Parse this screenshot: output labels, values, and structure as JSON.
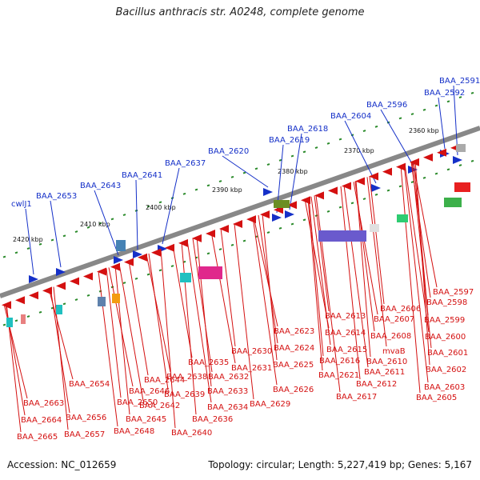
{
  "title": "Bacillus anthracis str. A0248, complete genome",
  "footer": {
    "accession": "Accession: NC_012659",
    "topology": "Topology: circular; Length: 5,227,419 bp; Genes: 5,167"
  },
  "ruler": [
    "2360 kbp",
    "2370 kbp",
    "2380 kbp",
    "2390 kbp",
    "2400 kbp",
    "2410 kbp",
    "2420 kbp"
  ],
  "forward_genes": [
    "BAA_2591",
    "BAA_2592",
    "BAA_2596",
    "BAA_2604",
    "BAA_2618",
    "BAA_2619",
    "BAA_2620",
    "BAA_2637",
    "BAA_2641",
    "BAA_2643",
    "BAA_2653",
    "cwlJ1"
  ],
  "reverse_genes": [
    "BAA_2597",
    "BAA_2598",
    "BAA_2599",
    "BAA_2600",
    "BAA_2601",
    "BAA_2602",
    "BAA_2603",
    "BAA_2605",
    "BAA_2606",
    "BAA_2607",
    "BAA_2608",
    "BAA_2610",
    "BAA_2611",
    "BAA_2612",
    "BAA_2613",
    "BAA_2614",
    "BAA_2615",
    "BAA_2616",
    "BAA_2617",
    "mvaB",
    "BAA_2621",
    "BAA_2623",
    "BAA_2624",
    "BAA_2625",
    "BAA_2626",
    "BAA_2629",
    "BAA_2630",
    "BAA_2631",
    "BAA_2632",
    "BAA_2633",
    "BAA_2634",
    "BAA_2635",
    "BAA_2636",
    "BAA_2638",
    "BAA_2639",
    "BAA_2640",
    "BAA_2642",
    "BAA_2644",
    "BAA_2645",
    "BAA_2646",
    "BAA_2648",
    "BAA_2650",
    "BAA_2654",
    "BAA_2656",
    "BAA_2657",
    "BAA_2663",
    "BAA_2664",
    "BAA_2665"
  ],
  "colors": {
    "forward": "#1530c8",
    "reverse": "#d41010",
    "backbone": "#888888",
    "ruler_tick": "#2a8a2a"
  }
}
